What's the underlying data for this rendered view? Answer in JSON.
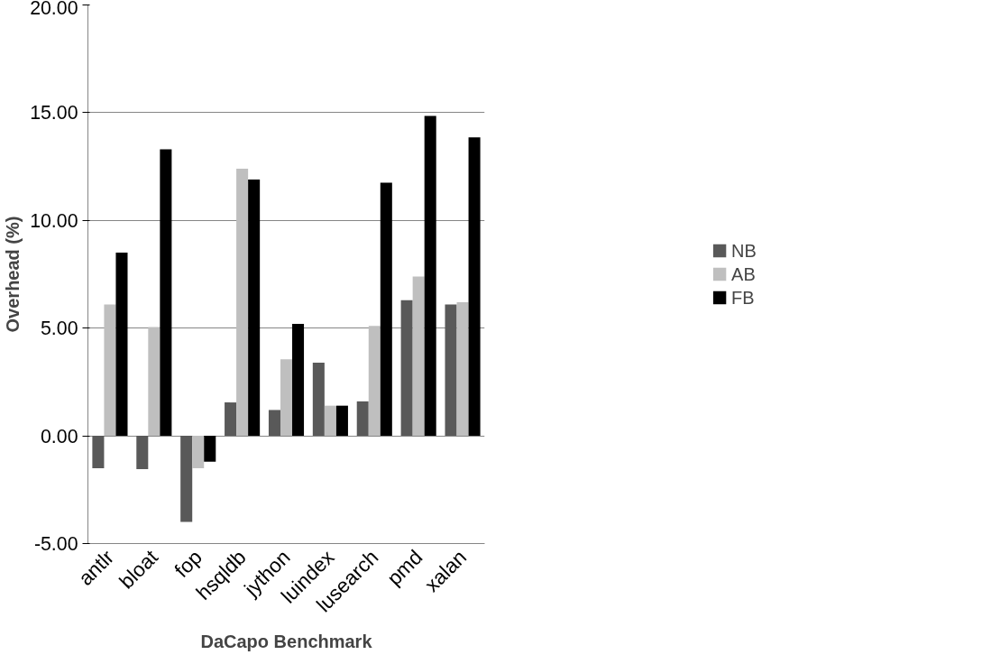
{
  "chart_data": {
    "type": "bar",
    "xlabel": "DaCapo Benchmark",
    "ylabel": "Overhead (%)",
    "categories": [
      "antlr",
      "bloat",
      "fop",
      "hsqldb",
      "jython",
      "luindex",
      "lusearch",
      "pmd",
      "xalan"
    ],
    "series": [
      {
        "name": "NB",
        "color": "#595959",
        "values": [
          -1.5,
          -1.55,
          -4.0,
          1.55,
          1.2,
          3.4,
          1.6,
          6.3,
          6.1
        ]
      },
      {
        "name": "AB",
        "color": "#bfbfbf",
        "values": [
          6.1,
          5.05,
          -1.5,
          12.4,
          3.55,
          1.4,
          5.1,
          7.4,
          6.2
        ]
      },
      {
        "name": "FB",
        "color": "#000000",
        "values": [
          8.5,
          13.3,
          -1.2,
          11.9,
          5.2,
          1.4,
          11.75,
          14.85,
          13.85
        ]
      }
    ],
    "ylim": [
      -5,
      20
    ],
    "yticks": [
      {
        "value": -5,
        "label": "-5.00"
      },
      {
        "value": 0,
        "label": "0.00"
      },
      {
        "value": 5,
        "label": "5.00"
      },
      {
        "value": 10,
        "label": "10.00"
      },
      {
        "value": 15,
        "label": "15.00"
      },
      {
        "value": 20,
        "label": "20.00"
      }
    ],
    "grid": "y",
    "legend": "right"
  }
}
